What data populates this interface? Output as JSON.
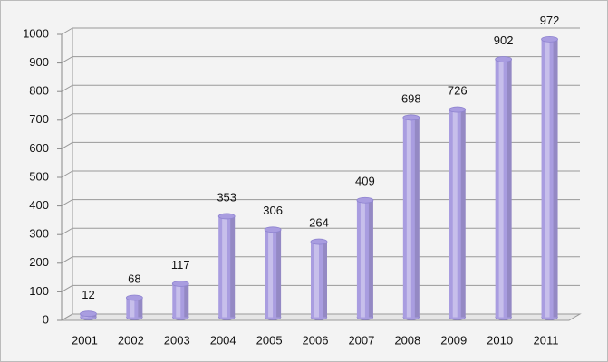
{
  "chart_data": {
    "type": "bar",
    "categories": [
      "2001",
      "2002",
      "2003",
      "2004",
      "2005",
      "2006",
      "2007",
      "2008",
      "2009",
      "2010",
      "2011"
    ],
    "values": [
      12,
      68,
      117,
      353,
      306,
      264,
      409,
      698,
      726,
      902,
      972
    ],
    "color": "#a99de0",
    "ylim": [
      0,
      1000
    ],
    "yticks": [
      0,
      100,
      200,
      300,
      400,
      500,
      600,
      700,
      800,
      900,
      1000
    ],
    "grid": true
  }
}
